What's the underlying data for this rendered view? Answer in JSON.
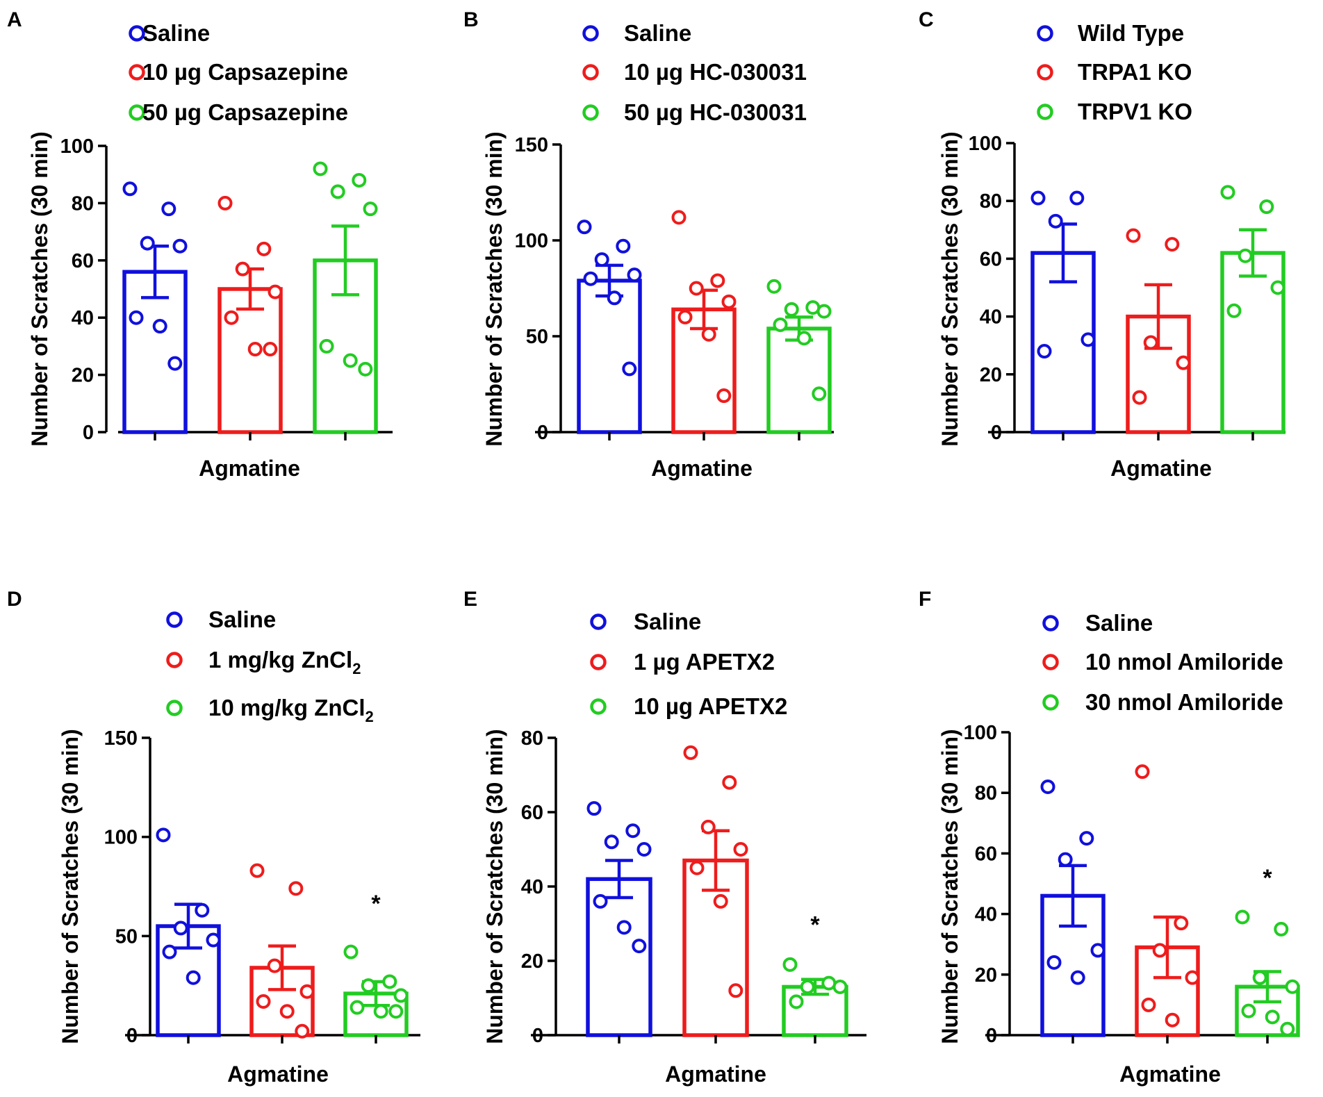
{
  "chart_data": [
    {
      "type": "bar",
      "panel": "A",
      "title": "",
      "xlabel": "Agmatine",
      "ylabel": "Number of Scratches (30 min)",
      "ylim": [
        0,
        100
      ],
      "yticks": [
        0,
        20,
        40,
        60,
        80,
        100
      ],
      "legend": "top",
      "series": [
        {
          "name": "Saline",
          "color": "#1010dd",
          "mean": 56,
          "sem": 9,
          "points": [
            85,
            78,
            66,
            65,
            40,
            37,
            24
          ],
          "sig": ""
        },
        {
          "name": "10 µg Capsazepine",
          "color": "#ee1c1c",
          "mean": 50,
          "sem": 7,
          "points": [
            80,
            64,
            57,
            49,
            40,
            29,
            29
          ],
          "sig": ""
        },
        {
          "name": "50 µg Capsazepine",
          "color": "#22cc22",
          "mean": 60,
          "sem": 12,
          "points": [
            92,
            88,
            84,
            78,
            30,
            25,
            22
          ],
          "sig": ""
        }
      ]
    },
    {
      "type": "bar",
      "panel": "B",
      "title": "",
      "xlabel": "Agmatine",
      "ylabel": "Number of Scratches (30 min)",
      "ylim": [
        0,
        150
      ],
      "yticks": [
        0,
        50,
        100,
        150
      ],
      "legend": "top",
      "series": [
        {
          "name": "Saline",
          "color": "#1010dd",
          "mean": 79,
          "sem": 8,
          "points": [
            107,
            97,
            90,
            82,
            80,
            70,
            33
          ],
          "sig": ""
        },
        {
          "name": "10 µg HC-030031",
          "color": "#ee1c1c",
          "mean": 64,
          "sem": 10,
          "points": [
            112,
            79,
            75,
            68,
            60,
            51,
            19
          ],
          "sig": ""
        },
        {
          "name": "50 µg HC-030031",
          "color": "#22cc22",
          "mean": 54,
          "sem": 6,
          "points": [
            76,
            65,
            64,
            63,
            56,
            49,
            20
          ],
          "sig": ""
        }
      ]
    },
    {
      "type": "bar",
      "panel": "C",
      "title": "",
      "xlabel": "Agmatine",
      "ylabel": "Number of Scratches (30 min)",
      "ylim": [
        0,
        100
      ],
      "yticks": [
        0,
        20,
        40,
        60,
        80,
        100
      ],
      "legend": "top",
      "series": [
        {
          "name": "Wild Type",
          "color": "#1010dd",
          "mean": 62,
          "sem": 10,
          "points": [
            81,
            81,
            73,
            32,
            28
          ],
          "sig": ""
        },
        {
          "name": "TRPA1 KO",
          "color": "#ee1c1c",
          "mean": 40,
          "sem": 11,
          "points": [
            68,
            65,
            31,
            24,
            12
          ],
          "sig": ""
        },
        {
          "name": "TRPV1 KO",
          "color": "#22cc22",
          "mean": 62,
          "sem": 8,
          "points": [
            83,
            78,
            61,
            50,
            42
          ],
          "sig": ""
        }
      ]
    },
    {
      "type": "bar",
      "panel": "D",
      "title": "",
      "xlabel": "Agmatine",
      "ylabel": "Number of Scratches (30 min)",
      "ylim": [
        0,
        150
      ],
      "yticks": [
        0,
        50,
        100,
        150
      ],
      "legend": "top",
      "series": [
        {
          "name": "Saline",
          "label_main": "Saline",
          "label_sub": "",
          "color": "#1010dd",
          "mean": 55,
          "sem": 11,
          "points": [
            101,
            63,
            54,
            48,
            42,
            29
          ],
          "sig": ""
        },
        {
          "name": "1 mg/kg ZnCl2",
          "label_main": "1 mg/kg ZnCl",
          "label_sub": "2",
          "color": "#ee1c1c",
          "mean": 34,
          "sem": 11,
          "points": [
            83,
            74,
            35,
            22,
            17,
            12,
            2
          ],
          "sig": ""
        },
        {
          "name": "10 mg/kg ZnCl2",
          "label_main": "10 mg/kg ZnCl",
          "label_sub": "2",
          "color": "#22cc22",
          "mean": 21,
          "sem": 6,
          "points": [
            42,
            27,
            25,
            20,
            14,
            12,
            12
          ],
          "sig": "*"
        }
      ]
    },
    {
      "type": "bar",
      "panel": "E",
      "title": "",
      "xlabel": "Agmatine",
      "ylabel": "Number of Scratches (30 min)",
      "ylim": [
        0,
        80
      ],
      "yticks": [
        0,
        20,
        40,
        60,
        80
      ],
      "legend": "top",
      "series": [
        {
          "name": "Saline",
          "color": "#1010dd",
          "mean": 42,
          "sem": 5,
          "points": [
            61,
            55,
            52,
            50,
            36,
            29,
            24
          ],
          "sig": ""
        },
        {
          "name": "1 µg APETX2",
          "color": "#ee1c1c",
          "mean": 47,
          "sem": 8,
          "points": [
            76,
            68,
            56,
            50,
            45,
            36,
            12
          ],
          "sig": ""
        },
        {
          "name": "10 µg APETX2",
          "color": "#22cc22",
          "mean": 13,
          "sem": 2,
          "points": [
            19,
            14,
            13,
            13,
            9
          ],
          "sig": "*"
        }
      ]
    },
    {
      "type": "bar",
      "panel": "F",
      "title": "",
      "xlabel": "Agmatine",
      "ylabel": "Number of Scratches (30 min)",
      "ylim": [
        0,
        100
      ],
      "yticks": [
        0,
        20,
        40,
        60,
        80,
        100
      ],
      "legend": "top",
      "series": [
        {
          "name": "Saline",
          "color": "#1010dd",
          "mean": 46,
          "sem": 10,
          "points": [
            82,
            65,
            58,
            28,
            24,
            19
          ],
          "sig": ""
        },
        {
          "name": "10 nmol Amiloride",
          "color": "#ee1c1c",
          "mean": 29,
          "sem": 10,
          "points": [
            87,
            37,
            28,
            19,
            10,
            5
          ],
          "sig": ""
        },
        {
          "name": "30 nmol Amiloride",
          "color": "#22cc22",
          "mean": 16,
          "sem": 5,
          "points": [
            39,
            35,
            19,
            16,
            8,
            6,
            2
          ],
          "sig": "*"
        }
      ]
    }
  ]
}
